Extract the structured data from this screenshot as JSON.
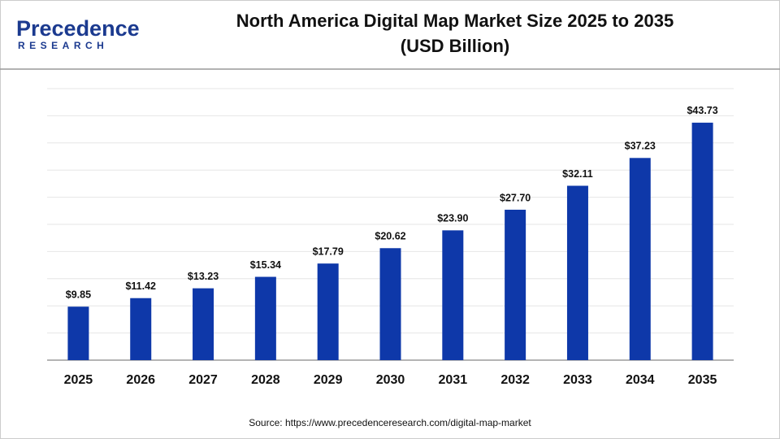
{
  "logo": {
    "name": "Precedence",
    "tagline": "RESEARCH"
  },
  "chart_data": {
    "type": "bar",
    "title": "North America Digital Map Market Size 2025 to 2035",
    "subtitle": "(USD Billion)",
    "categories": [
      "2025",
      "2026",
      "2027",
      "2028",
      "2029",
      "2030",
      "2031",
      "2032",
      "2033",
      "2034",
      "2035"
    ],
    "values": [
      9.85,
      11.42,
      13.23,
      15.34,
      17.79,
      20.62,
      23.9,
      27.7,
      32.11,
      37.23,
      43.73
    ],
    "value_labels": [
      "$9.85",
      "$11.42",
      "$13.23",
      "$15.34",
      "$17.79",
      "$20.62",
      "$23.90",
      "$27.70",
      "$32.11",
      "$37.23",
      "$43.73"
    ],
    "color": "#0e38a9",
    "ylim": [
      0,
      50
    ],
    "yticks": [
      0,
      5,
      10,
      15,
      20,
      25,
      30,
      35,
      40,
      45,
      50
    ],
    "grid": true,
    "source": "Source: https://www.precedenceresearch.com/digital-map-market"
  }
}
